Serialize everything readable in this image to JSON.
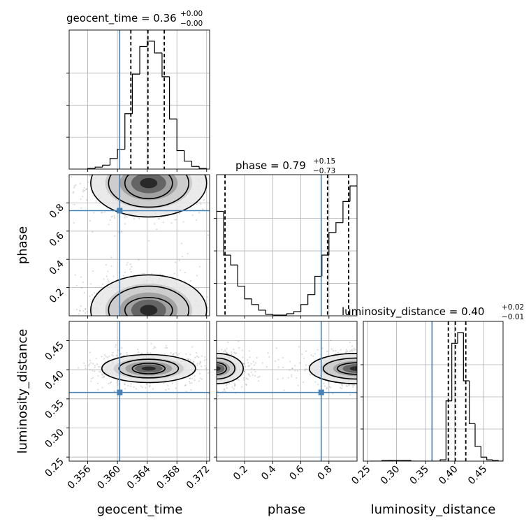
{
  "chart_data": {
    "type": "corner",
    "parameters": [
      "geocent_time",
      "phase",
      "luminosity_distance"
    ],
    "truth_color": "#4682b4",
    "titles": [
      {
        "param": "geocent_time",
        "label": "geocent_time",
        "value": "0.36",
        "plus": "+0.00",
        "minus": "−0.00"
      },
      {
        "param": "phase",
        "label": "phase",
        "value": "0.79",
        "plus": "+0.15",
        "minus": "−0.73"
      },
      {
        "param": "luminosity_distance",
        "label": "luminosity_distance",
        "value": "0.40",
        "plus": "+0.02",
        "minus": "−0.01"
      }
    ],
    "axes_labels": {
      "x": [
        "geocent_time",
        "phase",
        "luminosity_distance"
      ],
      "y": [
        "phase",
        "luminosity_distance"
      ]
    },
    "ranges": {
      "geocent_time": [
        0.3535,
        0.3724
      ],
      "phase": [
        0.0,
        1.0
      ],
      "luminosity_distance": [
        0.243,
        0.483
      ]
    },
    "ticks": {
      "geocent_time": [
        "0.356",
        "0.360",
        "0.364",
        "0.368",
        "0.372"
      ],
      "phase": [
        "0.2",
        "0.4",
        "0.6",
        "0.8"
      ],
      "luminosity_distance": [
        "0.25",
        "0.30",
        "0.35",
        "0.40",
        "0.45"
      ]
    },
    "truths": {
      "geocent_time": 0.3603,
      "phase": 0.745,
      "luminosity_distance": 0.361
    },
    "quantiles": {
      "geocent_time": [
        0.3618,
        0.3641,
        0.3663
      ],
      "phase": [
        0.06,
        0.79,
        0.94
      ],
      "luminosity_distance": [
        0.389,
        0.401,
        0.419
      ]
    },
    "histograms": {
      "geocent_time": {
        "edges": [
          0.356,
          0.357,
          0.358,
          0.359,
          0.36,
          0.361,
          0.362,
          0.363,
          0.364,
          0.365,
          0.366,
          0.367,
          0.368,
          0.369,
          0.37,
          0.371,
          0.372
        ],
        "counts": [
          0.5,
          1.5,
          3,
          8,
          15,
          42,
          72,
          93,
          97,
          88,
          70,
          38,
          14,
          6,
          2,
          0.5
        ]
      },
      "phase": {
        "edges": [
          0.0,
          0.05,
          0.1,
          0.15,
          0.2,
          0.25,
          0.3,
          0.35,
          0.4,
          0.45,
          0.5,
          0.55,
          0.6,
          0.65,
          0.7,
          0.75,
          0.8,
          0.85,
          0.9,
          0.95,
          1.0
        ],
        "counts": [
          74,
          43,
          36,
          21,
          12,
          8,
          4,
          1,
          0.5,
          0.5,
          1.5,
          3,
          8,
          15,
          28,
          43,
          59,
          66,
          81,
          92
        ]
      },
      "luminosity_distance": {
        "edges": [
          0.255,
          0.265,
          0.275,
          0.285,
          0.295,
          0.305,
          0.315,
          0.325,
          0.335,
          0.345,
          0.355,
          0.365,
          0.375,
          0.385,
          0.395,
          0.405,
          0.415,
          0.425,
          0.435,
          0.445,
          0.455,
          0.465,
          0.475,
          0.485
        ],
        "counts": [
          0,
          0,
          0.5,
          0.5,
          0.5,
          0.5,
          0.5,
          0,
          0,
          0,
          0,
          0,
          1,
          45,
          88,
          96,
          60,
          28,
          11,
          3,
          1,
          0.5,
          0
        ]
      }
    },
    "pair_panels": [
      {
        "x": "geocent_time",
        "y": "phase",
        "contours": [
          {
            "cx": 0.3642,
            "cy": 0.94,
            "rx": 0.0032,
            "ry": 0.11
          },
          {
            "cx": 0.3642,
            "cy": 0.94,
            "rx": 0.0054,
            "ry": 0.17
          },
          {
            "cx": 0.3642,
            "cy": 0.94,
            "rx": 0.0078,
            "ry": 0.24
          },
          {
            "cx": 0.3642,
            "cy": 0.04,
            "rx": 0.0032,
            "ry": 0.09
          },
          {
            "cx": 0.3642,
            "cy": 0.04,
            "rx": 0.0054,
            "ry": 0.17
          },
          {
            "cx": 0.3642,
            "cy": 0.04,
            "rx": 0.0078,
            "ry": 0.25
          }
        ]
      },
      {
        "x": "geocent_time",
        "y": "luminosity_distance",
        "contours": [
          {
            "cx": 0.3642,
            "cy": 0.402,
            "rx": 0.0022,
            "ry": 0.009
          },
          {
            "cx": 0.3642,
            "cy": 0.402,
            "rx": 0.004,
            "ry": 0.016
          },
          {
            "cx": 0.3642,
            "cy": 0.402,
            "rx": 0.0063,
            "ry": 0.024
          }
        ]
      },
      {
        "x": "phase",
        "y": "luminosity_distance",
        "contours": [
          {
            "cx": 0.0,
            "cy": 0.402,
            "rx": 0.07,
            "ry": 0.01
          },
          {
            "cx": 0.0,
            "cy": 0.402,
            "rx": 0.13,
            "ry": 0.018
          },
          {
            "cx": 0.0,
            "cy": 0.402,
            "rx": 0.19,
            "ry": 0.026
          },
          {
            "cx": 1.0,
            "cy": 0.402,
            "rx": 0.14,
            "ry": 0.01
          },
          {
            "cx": 1.0,
            "cy": 0.402,
            "rx": 0.24,
            "ry": 0.018
          },
          {
            "cx": 1.0,
            "cy": 0.402,
            "rx": 0.34,
            "ry": 0.026
          }
        ]
      }
    ],
    "grid": true
  }
}
